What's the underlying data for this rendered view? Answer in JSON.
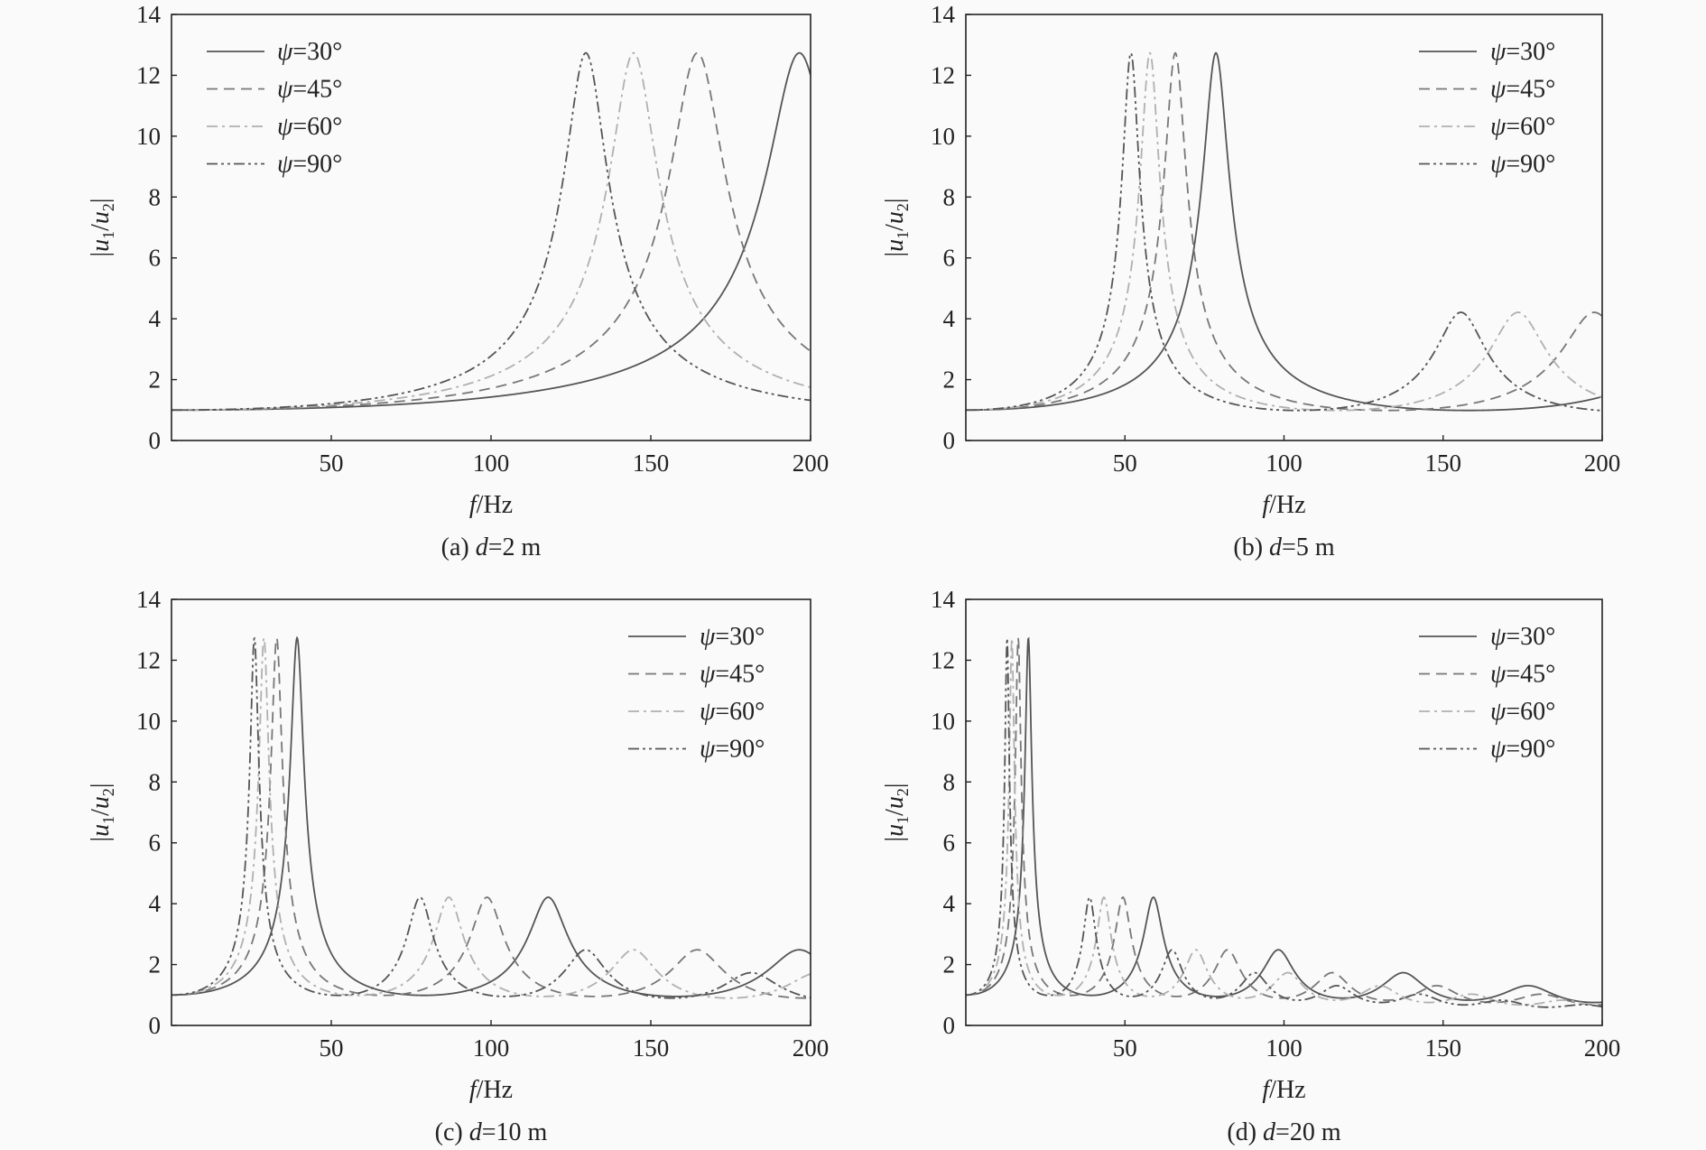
{
  "chart_data": [
    {
      "type": "line",
      "caption_prefix": "(a) ",
      "caption_var": "d",
      "caption_suffix": "=2 m",
      "d": 2,
      "xlabel_var": "f",
      "xlabel_unit": "/Hz",
      "ylabel": "|u1/u2|",
      "xlim": [
        0,
        200
      ],
      "ylim": [
        0,
        14
      ],
      "xticks": [
        50,
        100,
        150,
        200
      ],
      "yticks": [
        0,
        2,
        4,
        6,
        8,
        10,
        12,
        14
      ],
      "legend_position": "top-left",
      "model": "|u1/u2| = 1/|cos((pi/2)(f/f0)(1 - i*eta))|",
      "damping_eta": 0.05,
      "series": [
        {
          "name": "ψ=30°",
          "style": "solid",
          "color": "#555555",
          "f0": 197,
          "peak_value": 12.7
        },
        {
          "name": "ψ=45°",
          "style": "dashed",
          "color": "#777777",
          "f0": 165,
          "peak_value": 12.7
        },
        {
          "name": "ψ=60°",
          "style": "dashdot",
          "color": "#b0b0b0",
          "f0": 145,
          "peak_value": 12.7
        },
        {
          "name": "ψ=90°",
          "style": "dashdotdot",
          "color": "#555555",
          "f0": 130,
          "peak_value": 12.7
        }
      ]
    },
    {
      "type": "line",
      "caption_prefix": "(b) ",
      "caption_var": "d",
      "caption_suffix": "=5 m",
      "d": 5,
      "xlabel_var": "f",
      "xlabel_unit": "/Hz",
      "ylabel": "|u1/u2|",
      "xlim": [
        0,
        200
      ],
      "ylim": [
        0,
        14
      ],
      "xticks": [
        50,
        100,
        150,
        200
      ],
      "yticks": [
        0,
        2,
        4,
        6,
        8,
        10,
        12,
        14
      ],
      "legend_position": "top-right",
      "model": "|u1/u2| = 1/|cos((pi/2)(f/f0)(1 - i*eta))|",
      "damping_eta": 0.05,
      "series": [
        {
          "name": "ψ=30°",
          "style": "solid",
          "color": "#555555",
          "f0": 78.8,
          "peak_value": 12.7
        },
        {
          "name": "ψ=45°",
          "style": "dashed",
          "color": "#777777",
          "f0": 66,
          "peak_value": 12.7
        },
        {
          "name": "ψ=60°",
          "style": "dashdot",
          "color": "#b0b0b0",
          "f0": 58,
          "peak_value": 12.7
        },
        {
          "name": "ψ=90°",
          "style": "dashdotdot",
          "color": "#555555",
          "f0": 52,
          "peak_value": 12.7
        }
      ]
    },
    {
      "type": "line",
      "caption_prefix": "(c) ",
      "caption_var": "d",
      "caption_suffix": "=10 m",
      "d": 10,
      "xlabel_var": "f",
      "xlabel_unit": "/Hz",
      "ylabel": "|u1/u2|",
      "xlim": [
        0,
        200
      ],
      "ylim": [
        0,
        14
      ],
      "xticks": [
        50,
        100,
        150,
        200
      ],
      "yticks": [
        0,
        2,
        4,
        6,
        8,
        10,
        12,
        14
      ],
      "legend_position": "top-right",
      "model": "|u1/u2| = 1/|cos((pi/2)(f/f0)(1 - i*eta))|",
      "damping_eta": 0.05,
      "series": [
        {
          "name": "ψ=30°",
          "style": "solid",
          "color": "#555555",
          "f0": 39.4,
          "peak_value": 12.7
        },
        {
          "name": "ψ=45°",
          "style": "dashed",
          "color": "#777777",
          "f0": 33,
          "peak_value": 12.7
        },
        {
          "name": "ψ=60°",
          "style": "dashdot",
          "color": "#b0b0b0",
          "f0": 29,
          "peak_value": 12.7
        },
        {
          "name": "ψ=90°",
          "style": "dashdotdot",
          "color": "#555555",
          "f0": 26,
          "peak_value": 12.7
        }
      ]
    },
    {
      "type": "line",
      "caption_prefix": "(d) ",
      "caption_var": "d",
      "caption_suffix": "=20 m",
      "d": 20,
      "xlabel_var": "f",
      "xlabel_unit": "/Hz",
      "ylabel": "|u1/u2|",
      "xlim": [
        0,
        200
      ],
      "ylim": [
        0,
        14
      ],
      "xticks": [
        50,
        100,
        150,
        200
      ],
      "yticks": [
        0,
        2,
        4,
        6,
        8,
        10,
        12,
        14
      ],
      "legend_position": "top-right",
      "model": "|u1/u2| = 1/|cos((pi/2)(f/f0)(1 - i*eta))|",
      "damping_eta": 0.05,
      "series": [
        {
          "name": "ψ=30°",
          "style": "solid",
          "color": "#555555",
          "f0": 19.7,
          "peak_value": 12.7
        },
        {
          "name": "ψ=45°",
          "style": "dashed",
          "color": "#777777",
          "f0": 16.5,
          "peak_value": 12.7
        },
        {
          "name": "ψ=60°",
          "style": "dashdot",
          "color": "#b0b0b0",
          "f0": 14.5,
          "peak_value": 12.7
        },
        {
          "name": "ψ=90°",
          "style": "dashdotdot",
          "color": "#555555",
          "f0": 13,
          "peak_value": 12.7
        }
      ]
    }
  ]
}
